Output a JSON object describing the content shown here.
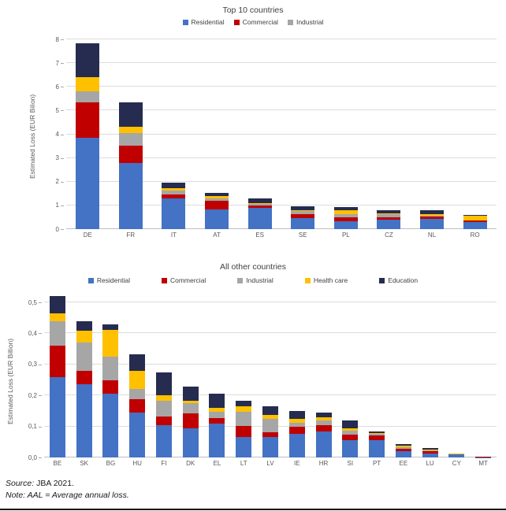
{
  "colors": {
    "residential": "#4472C4",
    "commercial": "#C00000",
    "industrial": "#A6A6A6",
    "health_care": "#FFC000",
    "education": "#262C4F",
    "gridline": "#DCDCDC",
    "axis_text": "#595959"
  },
  "notes": {
    "source_label": "Source:",
    "source_value": " JBA 2021.",
    "note_text": "Note: AAL = Average annual loss."
  },
  "chart_data": [
    {
      "type": "bar",
      "stacked": true,
      "title": "Top 10 countries",
      "ylabel": "Estimated Loss (EUR Bilion)",
      "xlabel": "",
      "ylim": [
        0,
        8
      ],
      "grid": true,
      "legend_position": "top",
      "ytick_values": [
        0,
        1,
        2,
        3,
        4,
        5,
        6,
        7,
        8
      ],
      "ytick_labels": [
        "0",
        "1",
        "2",
        "3",
        "4",
        "5",
        "6",
        "7",
        "8"
      ],
      "legend": [
        {
          "label": "Residential",
          "color": "#4472C4"
        },
        {
          "label": "Commercial",
          "color": "#C00000"
        },
        {
          "label": "Industrial",
          "color": "#A6A6A6"
        }
      ],
      "categories": [
        "DE",
        "FR",
        "IT",
        "AT",
        "ES",
        "SE",
        "PL",
        "CZ",
        "NL",
        "RO"
      ],
      "series": [
        {
          "name": "Residential",
          "color": "#4472C4",
          "values": [
            3.85,
            2.8,
            1.3,
            0.82,
            0.9,
            0.46,
            0.33,
            0.4,
            0.44,
            0.29
          ]
        },
        {
          "name": "Commercial",
          "color": "#C00000",
          "values": [
            1.5,
            0.72,
            0.15,
            0.36,
            0.1,
            0.16,
            0.18,
            0.11,
            0.08,
            0.06
          ]
        },
        {
          "name": "Industrial",
          "color": "#A6A6A6",
          "values": [
            0.45,
            0.53,
            0.17,
            0.12,
            0.05,
            0.14,
            0.12,
            0.12,
            0.05,
            0.02
          ]
        },
        {
          "name": "Health care",
          "color": "#FFC000",
          "values": [
            0.6,
            0.25,
            0.1,
            0.08,
            0.05,
            0.05,
            0.17,
            0.04,
            0.06,
            0.18
          ]
        },
        {
          "name": "Education",
          "color": "#262C4F",
          "values": [
            1.45,
            1.05,
            0.25,
            0.14,
            0.2,
            0.14,
            0.13,
            0.13,
            0.17,
            0.06
          ]
        }
      ]
    },
    {
      "type": "bar",
      "stacked": true,
      "title": "All other countries",
      "ylabel": "Estimated Loss (EUR Billion)",
      "xlabel": "",
      "ylim": [
        0,
        0.5
      ],
      "grid": true,
      "legend_position": "top",
      "ytick_values": [
        0,
        0.1,
        0.2,
        0.3,
        0.4,
        0.5
      ],
      "ytick_labels": [
        "0,0",
        "0,1",
        "0,2",
        "0,3",
        "0,4",
        "0,5"
      ],
      "legend": [
        {
          "label": "Residential",
          "color": "#4472C4"
        },
        {
          "label": "Commercial",
          "color": "#C00000"
        },
        {
          "label": "Industrial",
          "color": "#A6A6A6"
        },
        {
          "label": "Health care",
          "color": "#FFC000"
        },
        {
          "label": "Education",
          "color": "#262C4F"
        }
      ],
      "categories": [
        "BE",
        "SK",
        "BG",
        "HU",
        "FI",
        "DK",
        "EL",
        "LT",
        "LV",
        "IE",
        "HR",
        "SI",
        "PT",
        "EE",
        "LU",
        "CY",
        "MT"
      ],
      "series": [
        {
          "name": "Residential",
          "color": "#4472C4",
          "values": [
            0.26,
            0.235,
            0.205,
            0.145,
            0.105,
            0.093,
            0.11,
            0.065,
            0.065,
            0.075,
            0.085,
            0.055,
            0.055,
            0.02,
            0.013,
            0.009,
            0.001
          ]
        },
        {
          "name": "Commercial",
          "color": "#C00000",
          "values": [
            0.1,
            0.045,
            0.043,
            0.042,
            0.028,
            0.049,
            0.017,
            0.037,
            0.017,
            0.025,
            0.019,
            0.019,
            0.015,
            0.008,
            0.008,
            0.001,
            0.001
          ]
        },
        {
          "name": "Industrial",
          "color": "#A6A6A6",
          "values": [
            0.08,
            0.09,
            0.077,
            0.035,
            0.051,
            0.034,
            0.02,
            0.046,
            0.043,
            0.013,
            0.015,
            0.013,
            0.005,
            0.004,
            0.003,
            0.001,
            0.0
          ]
        },
        {
          "name": "Health care",
          "color": "#FFC000",
          "values": [
            0.025,
            0.04,
            0.085,
            0.056,
            0.017,
            0.008,
            0.014,
            0.017,
            0.013,
            0.012,
            0.01,
            0.007,
            0.004,
            0.005,
            0.002,
            0.001,
            0.0
          ]
        },
        {
          "name": "Education",
          "color": "#262C4F",
          "values": [
            0.055,
            0.03,
            0.02,
            0.055,
            0.073,
            0.045,
            0.044,
            0.017,
            0.027,
            0.026,
            0.015,
            0.026,
            0.006,
            0.007,
            0.004,
            0.002,
            0.001
          ]
        }
      ]
    }
  ]
}
